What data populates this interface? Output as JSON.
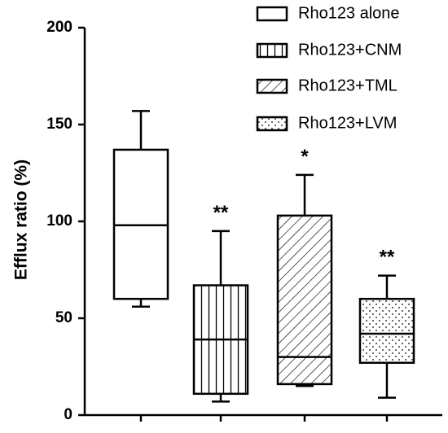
{
  "chart_data": {
    "type": "box",
    "ylabel": "Efflux ratio (%)",
    "ylim": [
      0,
      200
    ],
    "yticks": [
      0,
      50,
      100,
      150,
      200
    ],
    "grid": false,
    "legend_position": "top-right",
    "series": [
      {
        "name": "Rho123 alone",
        "pattern": "none",
        "whisker_low": 56,
        "q1": 60,
        "median": 98,
        "q3": 137,
        "whisker_high": 157,
        "annotation": ""
      },
      {
        "name": "Rho123+CNM",
        "pattern": "vertical",
        "whisker_low": 7,
        "q1": 11,
        "median": 39,
        "q3": 67,
        "whisker_high": 95,
        "annotation": "**"
      },
      {
        "name": "Rho123+TML",
        "pattern": "diagonal",
        "whisker_low": 15,
        "q1": 16,
        "median": 30,
        "q3": 103,
        "whisker_high": 124,
        "annotation": "*"
      },
      {
        "name": "Rho123+LVM",
        "pattern": "dots",
        "whisker_low": 9,
        "q1": 27,
        "median": 42,
        "q3": 60,
        "whisker_high": 72,
        "annotation": "**"
      }
    ]
  },
  "colors": {
    "stroke": "#000000",
    "background": "#ffffff"
  }
}
